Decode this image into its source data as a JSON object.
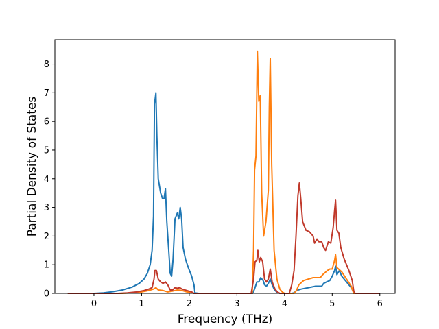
{
  "chart_data": {
    "type": "line",
    "title": "",
    "xlabel": "Frequency (THz)",
    "ylabel": "Partial Density of States",
    "xlim": [
      -0.82,
      6.32
    ],
    "ylim": [
      0,
      8.85
    ],
    "xticks": [
      0,
      1,
      2,
      3,
      4,
      5,
      6
    ],
    "yticks": [
      0,
      1,
      2,
      3,
      4,
      5,
      6,
      7,
      8
    ],
    "grid": false,
    "legend": "none",
    "series": [
      {
        "color": "#1f77b4",
        "points": [
          [
            -0.55,
            0
          ],
          [
            0,
            0
          ],
          [
            0.2,
            0.02
          ],
          [
            0.4,
            0.06
          ],
          [
            0.6,
            0.12
          ],
          [
            0.8,
            0.22
          ],
          [
            0.95,
            0.35
          ],
          [
            1.05,
            0.5
          ],
          [
            1.12,
            0.7
          ],
          [
            1.18,
            1.0
          ],
          [
            1.22,
            1.5
          ],
          [
            1.25,
            2.7
          ],
          [
            1.27,
            6.6
          ],
          [
            1.3,
            7.0
          ],
          [
            1.32,
            5.5
          ],
          [
            1.35,
            4.0
          ],
          [
            1.4,
            3.5
          ],
          [
            1.44,
            3.3
          ],
          [
            1.47,
            3.3
          ],
          [
            1.5,
            3.65
          ],
          [
            1.53,
            2.5
          ],
          [
            1.57,
            1.5
          ],
          [
            1.6,
            0.7
          ],
          [
            1.63,
            0.6
          ],
          [
            1.66,
            1.2
          ],
          [
            1.7,
            2.6
          ],
          [
            1.75,
            2.8
          ],
          [
            1.78,
            2.6
          ],
          [
            1.81,
            3.0
          ],
          [
            1.84,
            2.6
          ],
          [
            1.87,
            1.6
          ],
          [
            1.92,
            1.2
          ],
          [
            1.98,
            0.9
          ],
          [
            2.05,
            0.6
          ],
          [
            2.1,
            0.3
          ],
          [
            2.12,
            0.02
          ],
          [
            2.2,
            0
          ],
          [
            3.33,
            0
          ],
          [
            3.37,
            0.15
          ],
          [
            3.42,
            0.4
          ],
          [
            3.46,
            0.4
          ],
          [
            3.5,
            0.55
          ],
          [
            3.55,
            0.45
          ],
          [
            3.58,
            0.3
          ],
          [
            3.62,
            0.25
          ],
          [
            3.66,
            0.35
          ],
          [
            3.7,
            0.5
          ],
          [
            3.74,
            0.3
          ],
          [
            3.78,
            0.15
          ],
          [
            3.83,
            0.05
          ],
          [
            3.9,
            0
          ],
          [
            4.15,
            0
          ],
          [
            4.2,
            0.02
          ],
          [
            4.25,
            0.1
          ],
          [
            4.35,
            0.15
          ],
          [
            4.5,
            0.2
          ],
          [
            4.65,
            0.25
          ],
          [
            4.78,
            0.25
          ],
          [
            4.82,
            0.35
          ],
          [
            4.88,
            0.4
          ],
          [
            4.95,
            0.45
          ],
          [
            5.0,
            0.6
          ],
          [
            5.05,
            0.8
          ],
          [
            5.07,
            0.95
          ],
          [
            5.1,
            0.65
          ],
          [
            5.15,
            0.8
          ],
          [
            5.2,
            0.6
          ],
          [
            5.3,
            0.4
          ],
          [
            5.4,
            0.2
          ],
          [
            5.46,
            0
          ],
          [
            6.0,
            0
          ]
        ]
      },
      {
        "color": "#ff7f0e",
        "points": [
          [
            -0.55,
            0
          ],
          [
            0.6,
            0
          ],
          [
            0.8,
            0.02
          ],
          [
            1.0,
            0.05
          ],
          [
            1.15,
            0.1
          ],
          [
            1.25,
            0.15
          ],
          [
            1.3,
            0.2
          ],
          [
            1.35,
            0.12
          ],
          [
            1.45,
            0.1
          ],
          [
            1.55,
            0.05
          ],
          [
            1.65,
            0.08
          ],
          [
            1.75,
            0.12
          ],
          [
            1.85,
            0.1
          ],
          [
            1.95,
            0.05
          ],
          [
            2.05,
            0.02
          ],
          [
            2.1,
            0
          ],
          [
            3.32,
            0
          ],
          [
            3.35,
            1.5
          ],
          [
            3.37,
            4.3
          ],
          [
            3.4,
            4.8
          ],
          [
            3.43,
            8.45
          ],
          [
            3.46,
            6.7
          ],
          [
            3.49,
            6.9
          ],
          [
            3.52,
            3.5
          ],
          [
            3.56,
            2.0
          ],
          [
            3.61,
            2.5
          ],
          [
            3.66,
            3.6
          ],
          [
            3.68,
            6.5
          ],
          [
            3.7,
            8.2
          ],
          [
            3.73,
            4.5
          ],
          [
            3.78,
            1.5
          ],
          [
            3.84,
            0.5
          ],
          [
            3.9,
            0.15
          ],
          [
            3.95,
            0.05
          ],
          [
            4.0,
            0
          ],
          [
            4.2,
            0
          ],
          [
            4.25,
            0.1
          ],
          [
            4.3,
            0.3
          ],
          [
            4.4,
            0.45
          ],
          [
            4.5,
            0.5
          ],
          [
            4.6,
            0.55
          ],
          [
            4.75,
            0.55
          ],
          [
            4.8,
            0.65
          ],
          [
            4.9,
            0.8
          ],
          [
            4.95,
            0.85
          ],
          [
            5.0,
            0.85
          ],
          [
            5.05,
            1.15
          ],
          [
            5.07,
            1.35
          ],
          [
            5.1,
            0.9
          ],
          [
            5.2,
            0.75
          ],
          [
            5.3,
            0.5
          ],
          [
            5.4,
            0.25
          ],
          [
            5.45,
            0
          ],
          [
            6.0,
            0
          ]
        ]
      },
      {
        "color": "#c0392b",
        "points": [
          [
            -0.55,
            0
          ],
          [
            0.5,
            0
          ],
          [
            0.7,
            0.02
          ],
          [
            0.9,
            0.05
          ],
          [
            1.05,
            0.1
          ],
          [
            1.15,
            0.15
          ],
          [
            1.22,
            0.2
          ],
          [
            1.26,
            0.5
          ],
          [
            1.28,
            0.8
          ],
          [
            1.31,
            0.8
          ],
          [
            1.35,
            0.5
          ],
          [
            1.4,
            0.4
          ],
          [
            1.45,
            0.35
          ],
          [
            1.5,
            0.4
          ],
          [
            1.55,
            0.3
          ],
          [
            1.6,
            0.12
          ],
          [
            1.65,
            0.12
          ],
          [
            1.7,
            0.2
          ],
          [
            1.75,
            0.18
          ],
          [
            1.8,
            0.2
          ],
          [
            1.85,
            0.15
          ],
          [
            1.95,
            0.1
          ],
          [
            2.05,
            0.05
          ],
          [
            2.1,
            0
          ],
          [
            3.3,
            0
          ],
          [
            3.35,
            0.5
          ],
          [
            3.38,
            1.1
          ],
          [
            3.42,
            1.15
          ],
          [
            3.44,
            1.5
          ],
          [
            3.47,
            1.1
          ],
          [
            3.5,
            1.25
          ],
          [
            3.54,
            1.1
          ],
          [
            3.58,
            0.5
          ],
          [
            3.62,
            0.4
          ],
          [
            3.66,
            0.5
          ],
          [
            3.7,
            0.85
          ],
          [
            3.74,
            0.4
          ],
          [
            3.8,
            0.15
          ],
          [
            3.85,
            0.05
          ],
          [
            3.9,
            0
          ],
          [
            4.1,
            0
          ],
          [
            4.15,
            0.3
          ],
          [
            4.2,
            0.8
          ],
          [
            4.24,
            2.0
          ],
          [
            4.28,
            3.4
          ],
          [
            4.31,
            3.85
          ],
          [
            4.34,
            3.3
          ],
          [
            4.38,
            2.5
          ],
          [
            4.45,
            2.2
          ],
          [
            4.52,
            2.15
          ],
          [
            4.6,
            2.0
          ],
          [
            4.63,
            1.75
          ],
          [
            4.68,
            1.9
          ],
          [
            4.72,
            1.8
          ],
          [
            4.78,
            1.8
          ],
          [
            4.82,
            1.6
          ],
          [
            4.86,
            1.5
          ],
          [
            4.92,
            1.8
          ],
          [
            4.97,
            1.75
          ],
          [
            5.02,
            2.3
          ],
          [
            5.05,
            2.9
          ],
          [
            5.07,
            3.25
          ],
          [
            5.1,
            2.2
          ],
          [
            5.14,
            2.1
          ],
          [
            5.18,
            1.6
          ],
          [
            5.25,
            1.2
          ],
          [
            5.35,
            0.8
          ],
          [
            5.42,
            0.45
          ],
          [
            5.45,
            0.1
          ],
          [
            5.48,
            0
          ],
          [
            6.0,
            0
          ]
        ]
      }
    ]
  }
}
